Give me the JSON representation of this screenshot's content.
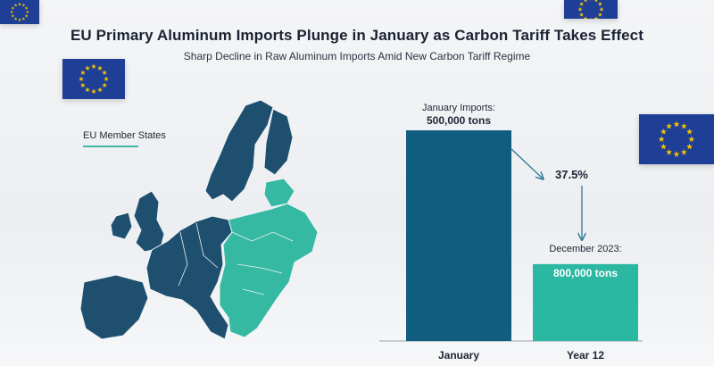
{
  "title": "EU Primary Aluminum Imports Plunge in January as Carbon Tariff Takes Effect",
  "subtitle": "Sharp Decline in Raw Aluminum Imports Amid New Carbon Tariff Regime",
  "map": {
    "legend_label": "EU Member States"
  },
  "colors": {
    "bar_january": "#0f5e80",
    "bar_year12": "#2bb8a3",
    "map_west": "#1e4f6e",
    "map_east": "#36b9a3",
    "arrow": "#2e7a94",
    "flag_blue": "#1f3f96",
    "flag_star": "#f2c200"
  },
  "icons": [
    "eu-flag-icon",
    "down-arrow-icon"
  ],
  "chart_data": {
    "type": "bar",
    "categories": [
      "January",
      "Year 12"
    ],
    "values": [
      500000,
      800000
    ],
    "bar_labels": [
      {
        "caption": "January Imports:",
        "value_text": "500,000 tons"
      },
      {
        "caption": "December 2023:",
        "value_text": "800,000 tons"
      }
    ],
    "change_label": "37.5%",
    "title": "",
    "xlabel": "",
    "ylabel": "",
    "grid": false
  }
}
